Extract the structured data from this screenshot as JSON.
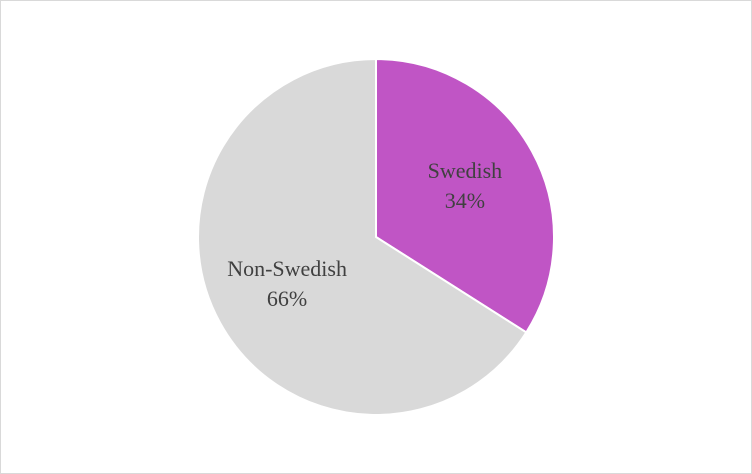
{
  "chart_data": {
    "type": "pie",
    "categories": [
      "Swedish",
      "Non-Swedish"
    ],
    "values": [
      34,
      66
    ],
    "value_labels": [
      "34%",
      "66%"
    ],
    "colors": [
      "#c055c5",
      "#d9d9d9"
    ]
  }
}
